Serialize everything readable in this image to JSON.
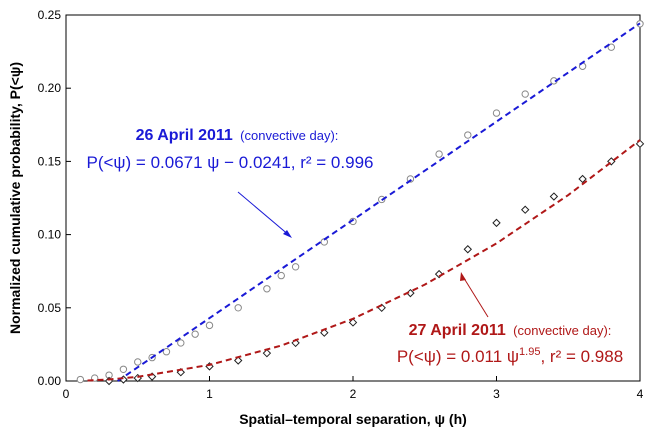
{
  "chart_data": {
    "type": "scatter",
    "xlabel": "Spatial–temporal separation, ψ (h)",
    "ylabel": "Normalized cumulative probability, P(<ψ)",
    "xlim": [
      0,
      4
    ],
    "xticks": [
      0,
      1,
      2,
      3,
      4
    ],
    "ylim": [
      0,
      0.25
    ],
    "yticks": [
      {
        "value": 0,
        "label": "0.00"
      },
      {
        "value": 0.05,
        "label": "0.05"
      },
      {
        "value": 0.1,
        "label": "0.10"
      },
      {
        "value": 0.15,
        "label": "0.15"
      },
      {
        "value": 0.2,
        "label": "0.20"
      },
      {
        "value": 0.25,
        "label": "0.25"
      }
    ],
    "series": [
      {
        "name": "26 April 2011",
        "color": "#888888",
        "marker": "circle",
        "x": [
          0.1,
          0.2,
          0.3,
          0.4,
          0.5,
          0.6,
          0.7,
          0.8,
          0.9,
          1.0,
          1.2,
          1.4,
          1.5,
          1.6,
          1.8,
          2.0,
          2.2,
          2.4,
          2.6,
          2.8,
          3.0,
          3.2,
          3.4,
          3.6,
          3.8,
          4.0
        ],
        "values": [
          0.001,
          0.002,
          0.004,
          0.008,
          0.013,
          0.016,
          0.02,
          0.026,
          0.032,
          0.038,
          0.05,
          0.063,
          0.072,
          0.078,
          0.095,
          0.109,
          0.124,
          0.138,
          0.155,
          0.168,
          0.183,
          0.196,
          0.205,
          0.215,
          0.228,
          0.244
        ]
      },
      {
        "name": "27 April 2011",
        "color": "#222222",
        "marker": "diamond",
        "x": [
          0.3,
          0.4,
          0.5,
          0.6,
          0.8,
          1.0,
          1.2,
          1.4,
          1.6,
          1.8,
          2.0,
          2.2,
          2.4,
          2.6,
          2.8,
          3.0,
          3.2,
          3.4,
          3.6,
          3.8,
          4.0
        ],
        "values": [
          0.0,
          0.001,
          0.002,
          0.003,
          0.006,
          0.01,
          0.014,
          0.019,
          0.026,
          0.033,
          0.04,
          0.05,
          0.06,
          0.073,
          0.09,
          0.108,
          0.117,
          0.126,
          0.138,
          0.15,
          0.162
        ]
      }
    ],
    "fits": [
      {
        "color": "#1a1ad6",
        "x": [
          0.36,
          4.0
        ],
        "values": [
          0,
          0.2443
        ]
      },
      {
        "color": "#b01818",
        "x": [
          0.15,
          0.3,
          0.5,
          1.0,
          1.5,
          2.0,
          2.5,
          3.0,
          3.5,
          4.0
        ],
        "values": [
          0.0003,
          0.00105,
          0.00285,
          0.011,
          0.0242,
          0.0425,
          0.0658,
          0.094,
          0.127,
          0.1646
        ]
      }
    ],
    "annotations": [
      {
        "title": "26 April 2011",
        "note": "(convective day):",
        "equation": "P(<ψ) = 0.0671 ψ − 0.0241, r² = 0.996",
        "color": "#1a1ad6"
      },
      {
        "title": "27 April 2011",
        "note": "(convective day):",
        "equation": "P(<ψ) = 0.011 ψ",
        "sup": "1.95",
        "equation_end": ", r² = 0.988",
        "color": "#b01818"
      }
    ]
  }
}
